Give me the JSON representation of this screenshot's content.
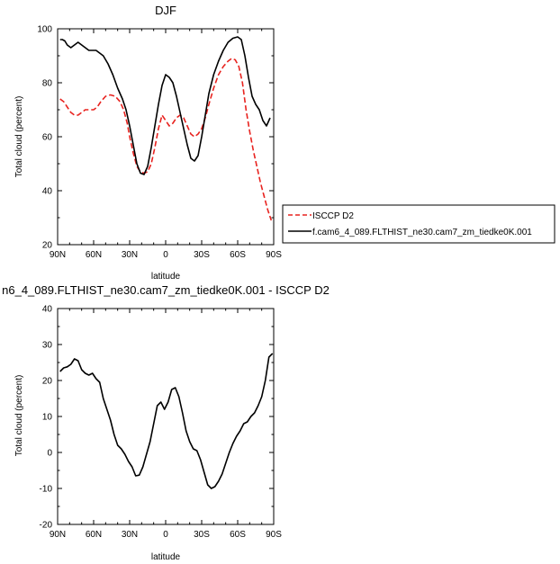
{
  "chart_data": [
    {
      "type": "line",
      "title": "DJF",
      "xlabel": "latitude",
      "ylabel": "Total cloud (percent)",
      "xlim": [
        90,
        -90
      ],
      "ylim": [
        20,
        100
      ],
      "x_ticks": [
        90,
        60,
        30,
        0,
        -30,
        -60,
        -90
      ],
      "x_tick_labels": [
        "90N",
        "60N",
        "30N",
        "0",
        "30S",
        "60S",
        "90S"
      ],
      "y_ticks": [
        20,
        40,
        60,
        80,
        100
      ],
      "y_tick_labels": [
        "20",
        "40",
        "60",
        "80",
        "100"
      ],
      "legend_position": "right",
      "series": [
        {
          "name": "ISCCP D2",
          "color": "#e8231f",
          "dash": true,
          "x": [
            88,
            85,
            82,
            79,
            76,
            73,
            70,
            67,
            63,
            60,
            57,
            54,
            50,
            46,
            42,
            38,
            35,
            32,
            30,
            27,
            24,
            21,
            18,
            15,
            12,
            9,
            6,
            3,
            0,
            -3,
            -6,
            -9,
            -12,
            -15,
            -18,
            -21,
            -24,
            -27,
            -30,
            -33,
            -36,
            -40,
            -44,
            -48,
            -52,
            -55,
            -58,
            -61,
            -64,
            -67,
            -70,
            -73,
            -76,
            -79,
            -82,
            -85,
            -88
          ],
          "values": [
            74,
            73,
            71,
            69,
            68,
            68,
            69,
            70,
            70,
            70,
            71,
            73,
            75,
            75.5,
            75,
            73,
            70,
            65,
            60,
            54,
            49,
            47,
            46.5,
            47,
            50,
            56,
            63,
            68,
            66,
            64,
            65,
            67,
            68,
            67,
            64,
            61,
            60,
            61,
            63,
            67,
            72,
            78,
            83,
            86,
            88,
            89,
            88.5,
            86,
            80,
            70,
            62,
            55,
            49,
            43,
            38,
            33,
            29
          ]
        },
        {
          "name": "f.cam6_4_089.FLTHIST_ne30.cam7_zm_tiedke0K.001",
          "color": "#000000",
          "dash": false,
          "x": [
            88,
            86,
            84,
            82,
            79,
            76,
            73,
            70,
            67,
            64,
            61,
            58,
            55,
            52,
            48,
            44,
            40,
            36,
            33,
            30,
            27,
            24,
            21,
            18,
            15,
            12,
            9,
            6,
            3,
            0,
            -3,
            -6,
            -9,
            -12,
            -15,
            -18,
            -21,
            -24,
            -27,
            -30,
            -33,
            -36,
            -40,
            -44,
            -48,
            -52,
            -56,
            -60,
            -63,
            -66,
            -69,
            -72,
            -75,
            -78,
            -81,
            -84,
            -87
          ],
          "values": [
            96,
            96,
            95.5,
            94,
            93,
            94,
            95,
            94,
            93,
            92,
            92,
            92,
            91,
            90,
            87,
            83,
            78,
            74,
            70,
            64,
            57,
            50,
            46.5,
            46,
            49,
            56,
            64,
            72,
            79,
            83,
            82,
            80,
            75,
            69,
            63,
            57,
            52,
            51,
            53,
            60,
            68,
            76,
            83,
            88,
            92,
            95,
            96.5,
            97,
            96,
            90,
            82,
            75,
            72,
            70,
            66,
            64,
            67
          ]
        }
      ]
    },
    {
      "type": "line",
      "title": "n6_4_089.FLTHIST_ne30.cam7_zm_tiedke0K.001 - ISCCP D2",
      "xlabel": "latitude",
      "ylabel": "Total cloud (percent)",
      "xlim": [
        90,
        -90
      ],
      "ylim": [
        -20,
        40
      ],
      "x_ticks": [
        90,
        60,
        30,
        0,
        -30,
        -60,
        -90
      ],
      "x_tick_labels": [
        "90N",
        "60N",
        "30N",
        "0",
        "30S",
        "60S",
        "90S"
      ],
      "y_ticks": [
        -20,
        -10,
        0,
        10,
        20,
        30,
        40
      ],
      "y_tick_labels": [
        "-20",
        "-10",
        "0",
        "10",
        "20",
        "30",
        "40"
      ],
      "series": [
        {
          "color": "#000000",
          "dash": false,
          "x": [
            88,
            85,
            82,
            79,
            76,
            73,
            70,
            67,
            64,
            61,
            58,
            55,
            52,
            49,
            46,
            43,
            40,
            37,
            34,
            31,
            28,
            25,
            22,
            19,
            16,
            13,
            10,
            7,
            4,
            1,
            -2,
            -5,
            -8,
            -11,
            -14,
            -17,
            -20,
            -23,
            -26,
            -29,
            -32,
            -35,
            -38,
            -41,
            -44,
            -47,
            -50,
            -53,
            -56,
            -59,
            -62,
            -65,
            -68,
            -71,
            -74,
            -77,
            -80,
            -83,
            -86,
            -89
          ],
          "values": [
            22.5,
            23.5,
            23.8,
            24.5,
            26,
            25.5,
            23,
            22,
            21.5,
            22,
            20.5,
            19.5,
            15,
            12,
            9,
            5,
            2,
            1,
            -0.5,
            -2.5,
            -4,
            -6.5,
            -6.3,
            -4,
            -0.5,
            3,
            8,
            13,
            14,
            12,
            14,
            17.5,
            18,
            15.5,
            11,
            6,
            3,
            1,
            0.5,
            -2,
            -5.5,
            -9,
            -10,
            -9.5,
            -8,
            -6,
            -3,
            0,
            2.5,
            4.5,
            6,
            8,
            8.5,
            10,
            11,
            13,
            15.5,
            20,
            26.5,
            27.5
          ]
        }
      ]
    }
  ]
}
